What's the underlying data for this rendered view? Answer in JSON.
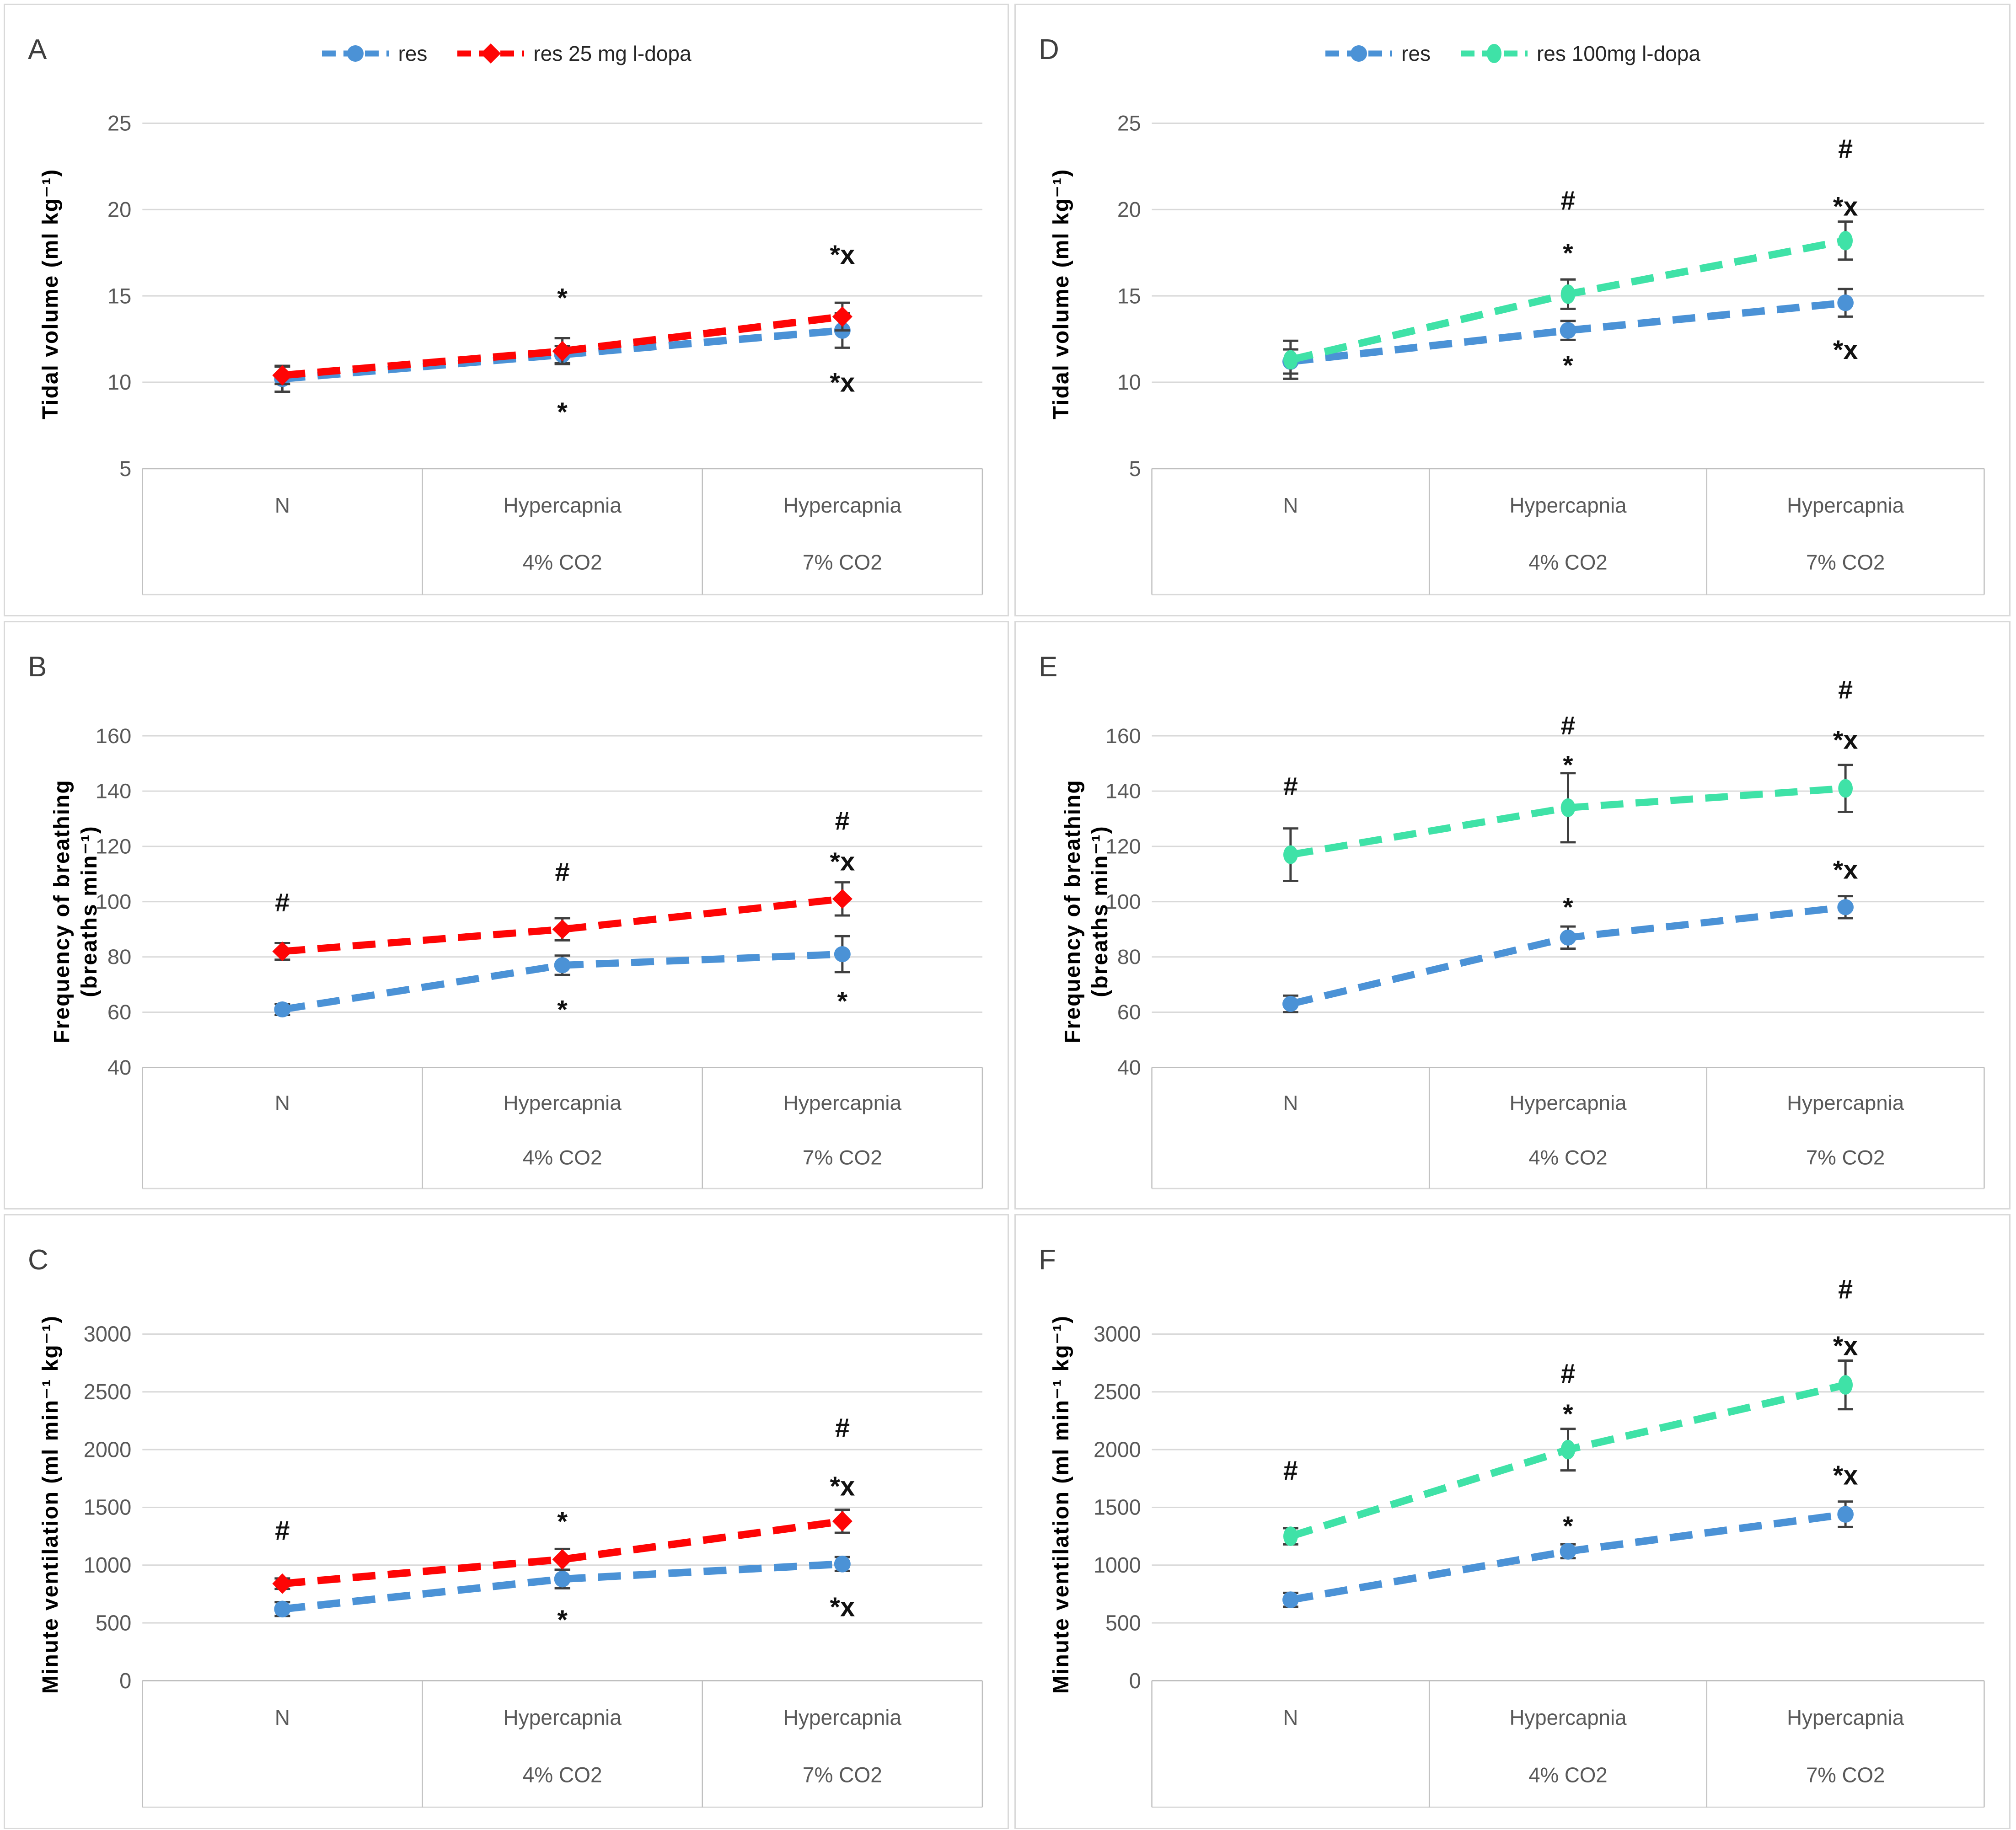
{
  "colors": {
    "blue": "#4b92d6",
    "red": "#fe0505",
    "green": "#3fe2a7",
    "grid": "#d9d9d9",
    "axis_text": "#595959",
    "table_border": "#bfbfbf",
    "table_bottom": "#d9d9d9",
    "error_bar": "#3f3f3f",
    "annotation": "#111111",
    "panel_letter": "#3f3f3f",
    "panel_border": "#d9d9d9"
  },
  "chart_data": [
    {
      "panel": "A",
      "type": "line",
      "show_legend": true,
      "ylabel": "Tidal volume (ml kg⁻¹)",
      "yticks": [
        25,
        20,
        15,
        10,
        5
      ],
      "ylim": [
        5,
        25
      ],
      "grid": true,
      "legend_position": "top-center",
      "categories": [
        [
          "N"
        ],
        [
          "Hypercapnia",
          "4% CO2"
        ],
        [
          "Hypercapnia",
          "7% CO2"
        ]
      ],
      "series": [
        {
          "name": "res",
          "color": "blue",
          "marker": "circle",
          "values": [
            10.2,
            11.6,
            13.0
          ],
          "errors": [
            0.75,
            0.5,
            1.0
          ]
        },
        {
          "name": "res 25 mg l-dopa",
          "color": "red",
          "marker": "diamond",
          "values": [
            10.4,
            11.8,
            13.8
          ],
          "errors": [
            0.5,
            0.75,
            0.8
          ]
        }
      ],
      "annotations": [
        {
          "cat": 1,
          "value": 15.3,
          "text": "*"
        },
        {
          "cat": 1,
          "value": 8.7,
          "text": "*"
        },
        {
          "cat": 2,
          "value": 17.8,
          "text": "*x"
        },
        {
          "cat": 2,
          "value": 10.4,
          "text": "*x"
        }
      ]
    },
    {
      "panel": "D",
      "type": "line",
      "show_legend": true,
      "ylabel": "Tidal volume (ml kg⁻¹)",
      "yticks": [
        25,
        20,
        15,
        10,
        5
      ],
      "ylim": [
        5,
        25
      ],
      "grid": true,
      "legend_position": "top-center",
      "categories": [
        [
          "N"
        ],
        [
          "Hypercapnia",
          "4% CO2"
        ],
        [
          "Hypercapnia",
          "7% CO2"
        ]
      ],
      "series": [
        {
          "name": "res",
          "color": "blue",
          "marker": "circle",
          "values": [
            11.2,
            13.0,
            14.6
          ],
          "errors": [
            0.7,
            0.55,
            0.8
          ]
        },
        {
          "name": "res 100mg l-dopa",
          "color": "green",
          "marker": "ellipse",
          "values": [
            11.3,
            15.1,
            18.2
          ],
          "errors": [
            1.1,
            0.85,
            1.1
          ]
        }
      ],
      "annotations": [
        {
          "cat": 1,
          "value": 20.4,
          "text": "#"
        },
        {
          "cat": 1,
          "value": 17.9,
          "text": "*"
        },
        {
          "cat": 1,
          "value": 11.4,
          "text": "*"
        },
        {
          "cat": 2,
          "value": 23.4,
          "text": "#"
        },
        {
          "cat": 2,
          "value": 20.6,
          "text": "*x"
        },
        {
          "cat": 2,
          "value": 12.3,
          "text": "*x"
        }
      ]
    },
    {
      "panel": "B",
      "type": "line",
      "show_legend": false,
      "ylabel": "Frequency of breathing\n(breaths min⁻¹)",
      "yticks": [
        160,
        140,
        120,
        100,
        80,
        60,
        40
      ],
      "ylim": [
        40,
        160
      ],
      "grid": true,
      "categories": [
        [
          "N"
        ],
        [
          "Hypercapnia",
          "4% CO2"
        ],
        [
          "Hypercapnia",
          "7% CO2"
        ]
      ],
      "series": [
        {
          "name": "res",
          "color": "blue",
          "marker": "circle",
          "values": [
            61,
            77,
            81
          ],
          "errors": [
            2,
            3.5,
            6.5
          ]
        },
        {
          "name": "res 25 mg l-dopa",
          "color": "red",
          "marker": "diamond",
          "values": [
            82,
            90,
            101
          ],
          "errors": [
            3,
            4,
            6
          ]
        }
      ],
      "annotations": [
        {
          "cat": 0,
          "value": 99,
          "text": "#"
        },
        {
          "cat": 1,
          "value": 110,
          "text": "#"
        },
        {
          "cat": 1,
          "value": 63.5,
          "text": "*"
        },
        {
          "cat": 2,
          "value": 128.5,
          "text": "#"
        },
        {
          "cat": 2,
          "value": 117,
          "text": "*x"
        },
        {
          "cat": 2,
          "value": 66.5,
          "text": "*"
        }
      ]
    },
    {
      "panel": "E",
      "type": "line",
      "show_legend": false,
      "ylabel": "Frequency of breathing\n(breaths min⁻¹)",
      "yticks": [
        160,
        140,
        120,
        100,
        80,
        60,
        40
      ],
      "ylim": [
        40,
        160
      ],
      "grid": true,
      "categories": [
        [
          "N"
        ],
        [
          "Hypercapnia",
          "4% CO2"
        ],
        [
          "Hypercapnia",
          "7% CO2"
        ]
      ],
      "series": [
        {
          "name": "res",
          "color": "blue",
          "marker": "circle",
          "values": [
            63,
            87,
            98
          ],
          "errors": [
            3,
            4,
            4
          ]
        },
        {
          "name": "res 100mg l-dopa",
          "color": "green",
          "marker": "ellipse",
          "values": [
            117,
            134,
            141
          ],
          "errors": [
            9.5,
            12.5,
            8.5
          ]
        }
      ],
      "annotations": [
        {
          "cat": 0,
          "value": 141,
          "text": "#"
        },
        {
          "cat": 1,
          "value": 163,
          "text": "#"
        },
        {
          "cat": 1,
          "value": 152,
          "text": "*"
        },
        {
          "cat": 1,
          "value": 100.5,
          "text": "*"
        },
        {
          "cat": 2,
          "value": 176,
          "text": "#"
        },
        {
          "cat": 2,
          "value": 161,
          "text": "*x"
        },
        {
          "cat": 2,
          "value": 114,
          "text": "*x"
        }
      ]
    },
    {
      "panel": "C",
      "type": "line",
      "show_legend": false,
      "ylabel": "Minute ventilation (ml min⁻¹ kg⁻¹)",
      "yticks": [
        3000,
        2500,
        2000,
        1500,
        1000,
        500,
        0
      ],
      "ylim": [
        0,
        3000
      ],
      "grid": true,
      "categories": [
        [
          "N"
        ],
        [
          "Hypercapnia",
          "4% CO2"
        ],
        [
          "Hypercapnia",
          "7% CO2"
        ]
      ],
      "series": [
        {
          "name": "res",
          "color": "blue",
          "marker": "circle",
          "values": [
            620,
            880,
            1010
          ],
          "errors": [
            60,
            80,
            60
          ]
        },
        {
          "name": "res 25 mg l-dopa",
          "color": "red",
          "marker": "diamond",
          "values": [
            840,
            1050,
            1380
          ],
          "errors": [
            45,
            90,
            100
          ]
        }
      ],
      "annotations": [
        {
          "cat": 0,
          "value": 1280,
          "text": "#"
        },
        {
          "cat": 1,
          "value": 1440,
          "text": "*"
        },
        {
          "cat": 1,
          "value": 590,
          "text": "*"
        },
        {
          "cat": 2,
          "value": 2170,
          "text": "#"
        },
        {
          "cat": 2,
          "value": 1745,
          "text": "*x"
        },
        {
          "cat": 2,
          "value": 700,
          "text": "*x"
        }
      ]
    },
    {
      "panel": "F",
      "type": "line",
      "show_legend": false,
      "ylabel": "Minute ventilation (ml min⁻¹ kg⁻¹)",
      "yticks": [
        3000,
        2500,
        2000,
        1500,
        1000,
        500,
        0
      ],
      "ylim": [
        0,
        3000
      ],
      "grid": true,
      "categories": [
        [
          "N"
        ],
        [
          "Hypercapnia",
          "4% CO2"
        ],
        [
          "Hypercapnia",
          "7% CO2"
        ]
      ],
      "series": [
        {
          "name": "res",
          "color": "blue",
          "marker": "circle",
          "values": [
            700,
            1120,
            1440
          ],
          "errors": [
            60,
            60,
            110
          ]
        },
        {
          "name": "res 100mg l-dopa",
          "color": "green",
          "marker": "ellipse",
          "values": [
            1250,
            2000,
            2560
          ],
          "errors": [
            70,
            180,
            210
          ]
        }
      ],
      "annotations": [
        {
          "cat": 0,
          "value": 1800,
          "text": "#"
        },
        {
          "cat": 1,
          "value": 2640,
          "text": "#"
        },
        {
          "cat": 1,
          "value": 2370,
          "text": "*"
        },
        {
          "cat": 1,
          "value": 1400,
          "text": "*"
        },
        {
          "cat": 2,
          "value": 3370,
          "text": "#"
        },
        {
          "cat": 2,
          "value": 2960,
          "text": "*x"
        },
        {
          "cat": 2,
          "value": 1840,
          "text": "*x"
        }
      ]
    }
  ]
}
